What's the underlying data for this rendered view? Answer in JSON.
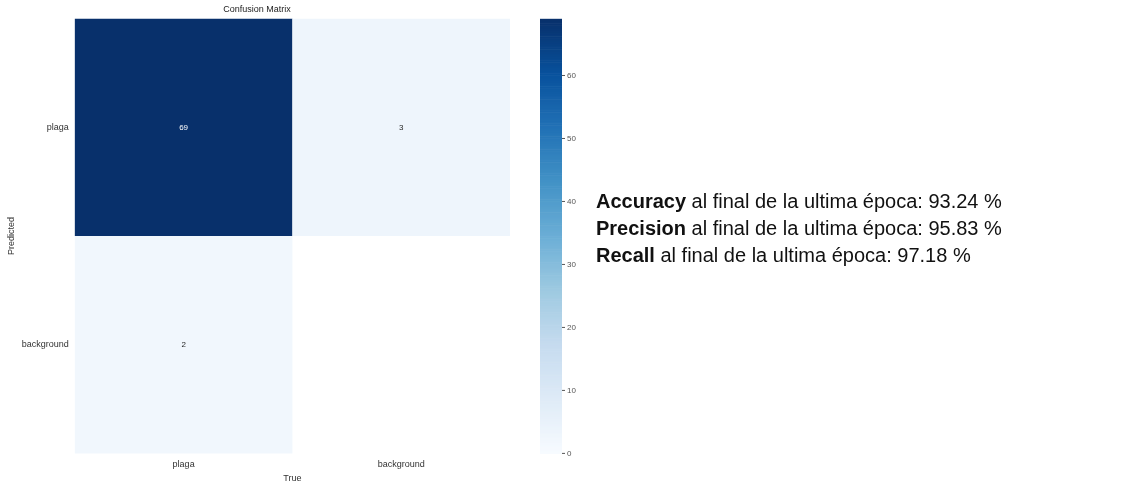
{
  "chart_data": {
    "type": "heatmap",
    "title": "Confusion Matrix",
    "xlabel": "True",
    "ylabel": "Predicted",
    "categories": [
      "plaga",
      "background"
    ],
    "y_categories": [
      "plaga",
      "background"
    ],
    "cells": [
      [
        69,
        3
      ],
      [
        2,
        null
      ]
    ],
    "data_labels": true,
    "clim": [
      0,
      69
    ],
    "cticks": [
      0,
      10,
      20,
      30,
      40,
      50,
      60
    ],
    "grid": false,
    "legend": false,
    "annotations": [
      "Accuracy al final de la ultima época: 93.24 %",
      "Precision al final de la ultima época: 95.83 %",
      "Recall al final de la ultima época: 97.18 %"
    ]
  }
}
